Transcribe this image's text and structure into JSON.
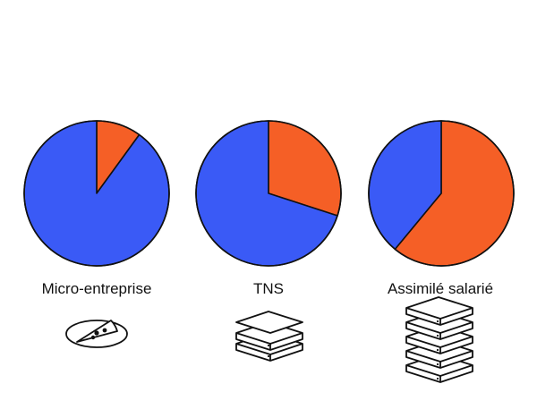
{
  "chart_data": {
    "type": "pie",
    "colors": {
      "blue": "#3a5af6",
      "orange": "#f55f26",
      "stroke": "#111111"
    },
    "charts": [
      {
        "label": "Micro-entreprise",
        "icon": "pizza-slice-on-plate-icon",
        "slices": [
          {
            "color": "orange",
            "value": 10
          },
          {
            "color": "blue",
            "value": 90
          }
        ]
      },
      {
        "label": "TNS",
        "icon": "two-pizza-boxes-icon",
        "slices": [
          {
            "color": "orange",
            "value": 30
          },
          {
            "color": "blue",
            "value": 70
          }
        ]
      },
      {
        "label": "Assimilé salarié",
        "icon": "five-pizza-boxes-icon",
        "slices": [
          {
            "color": "orange",
            "value": 61
          },
          {
            "color": "blue",
            "value": 39
          }
        ]
      }
    ]
  }
}
